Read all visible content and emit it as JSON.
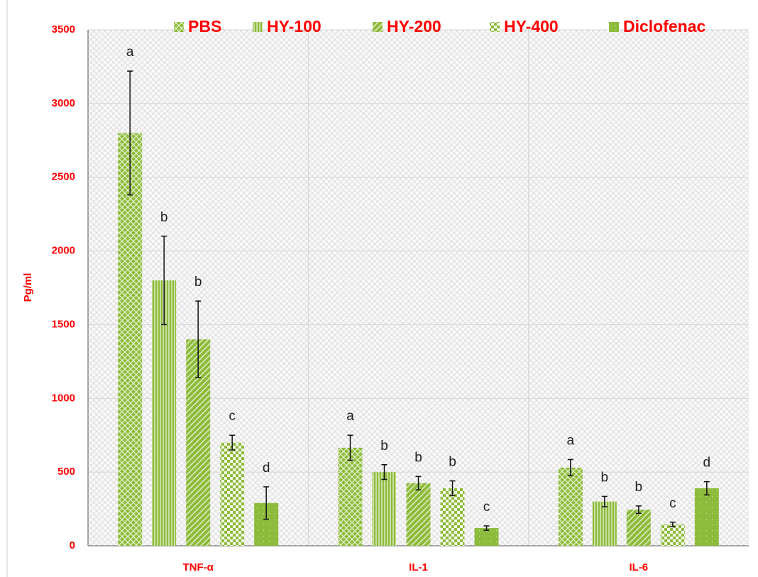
{
  "chart_data": {
    "type": "bar",
    "y_label": "Pg/ml",
    "categories": [
      "TNF-α",
      "IL-1",
      "IL-6"
    ],
    "series": [
      {
        "name": "PBS",
        "color": "#8dbb3c",
        "values": [
          2800,
          665,
          530
        ],
        "errors": [
          420,
          85,
          55
        ],
        "labels": [
          "a",
          "a",
          "a"
        ]
      },
      {
        "name": "HY-100",
        "color": "#8dbb3c",
        "values": [
          1800,
          500,
          300
        ],
        "errors": [
          300,
          50,
          35
        ],
        "labels": [
          "b",
          "b",
          "b"
        ]
      },
      {
        "name": "HY-200",
        "color": "#8dbb3c",
        "values": [
          1400,
          425,
          245
        ],
        "errors": [
          260,
          45,
          25
        ],
        "labels": [
          "b",
          "b",
          "b"
        ]
      },
      {
        "name": "HY-400",
        "color": "#8dbb3c",
        "values": [
          700,
          390,
          145
        ],
        "errors": [
          50,
          50,
          15
        ],
        "labels": [
          "c",
          "b",
          "c"
        ]
      },
      {
        "name": "Diclofenac",
        "color": "#8dbb3c",
        "values": [
          290,
          120,
          390
        ],
        "errors": [
          110,
          15,
          45
        ],
        "labels": [
          "d",
          "c",
          "d"
        ]
      }
    ],
    "ylim": [
      0,
      3500
    ],
    "yticks": [
      0,
      500,
      1000,
      1500,
      2000,
      2500,
      3000,
      3500
    ],
    "grid": true
  }
}
